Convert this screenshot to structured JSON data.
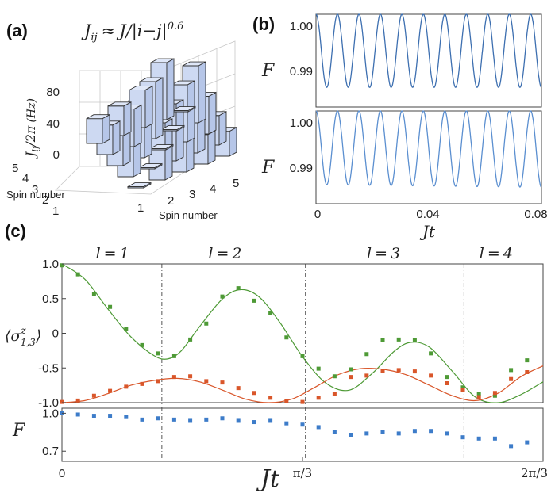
{
  "chart_data": [
    {
      "type": "bar3d",
      "panel": "(a)",
      "title": "J_ij ≈ J/|i−j|^0.6",
      "title_parts": {
        "lhs": "J",
        "lhs_sub": "ij",
        "rel": "≈",
        "rhs": "J/|i−j|",
        "rhs_sup": "0.6"
      },
      "zlabel": "J_ij/2π (Hz)",
      "zlabel_parts": {
        "main": "J",
        "sub": "ij",
        "rest": "/2π",
        "unit": "(Hz)"
      },
      "xlabel": "Spin number",
      "ylabel": "Spin number",
      "x_ticks": [
        "1",
        "2",
        "3",
        "4",
        "5"
      ],
      "y_ticks": [
        "1",
        "2",
        "3",
        "4",
        "5"
      ],
      "z_ticks": [
        "0",
        "40",
        "80"
      ],
      "zlim": [
        0,
        100
      ],
      "exponent": 0.6,
      "J_nearest_Hz": 72
    },
    {
      "type": "line",
      "panel": "(b)",
      "subplots": [
        {
          "ylabel": "F",
          "y_ticks": [
            "1.00",
            "0.99"
          ],
          "ylim": [
            0.983,
            1.0
          ],
          "series": [
            {
              "name": "F",
              "color": "#3d6fb0",
              "samples": 700,
              "x_range": [
                0,
                0.08
              ],
              "cycles": 10.5,
              "y_max": 1.0,
              "y_min_start": 0.9866,
              "y_min_end": 0.9866
            }
          ]
        },
        {
          "ylabel": "F",
          "y_ticks": [
            "1.00",
            "0.99"
          ],
          "ylim": [
            0.983,
            1.0
          ],
          "series": [
            {
              "name": "F",
              "color": "#5b8fd0",
              "samples": 700,
              "x_range": [
                0,
                0.08
              ],
              "cycles": 10.5,
              "y_max": 1.0,
              "y_min_start": 0.9865,
              "y_min_end": 0.986
            }
          ]
        }
      ],
      "xlabel": "Jt",
      "x_ticks": [
        "0",
        "0.04",
        "0.08"
      ],
      "x_tick_values": [
        0,
        0.04,
        0.08
      ],
      "xlim": [
        0,
        0.08
      ]
    },
    {
      "type": "scatter+line",
      "panel": "(c)",
      "xlabel": "Jt",
      "xlim": [
        0,
        2.0944
      ],
      "x_ticks": [
        "0",
        "π/3",
        "2π/3"
      ],
      "x_tick_values": [
        0,
        1.0472,
        2.0944
      ],
      "regions": [
        {
          "label": "l = 1",
          "l": "l",
          "n": "1",
          "center": 0.22
        },
        {
          "label": "l = 2",
          "l": "l",
          "n": "2",
          "center": 0.71
        },
        {
          "label": "l = 3",
          "l": "l",
          "n": "3",
          "center": 1.4
        },
        {
          "label": "l = 4",
          "l": "l",
          "n": "4",
          "center": 1.89
        }
      ],
      "region_boundaries": [
        0.435,
        1.06,
        1.75
      ],
      "top": {
        "ylabel": "⟨σ^z_{1,3}⟩",
        "ylabel_parts": {
          "sigma": "σ",
          "sup": "z",
          "sub": "1,3"
        },
        "ylim": [
          -1.0,
          1.0
        ],
        "y_ticks": [
          "1.0",
          "0.5",
          "0",
          "-0.5",
          "-1.0"
        ],
        "y_tick_values": [
          1.0,
          0.5,
          0.0,
          -0.5,
          -1.0
        ],
        "series": [
          {
            "name": "⟨σ^z_1⟩ experiment",
            "kind": "points",
            "color": "#4e9a36",
            "x": [
              0,
              0.0698,
              0.1396,
              0.2094,
              0.2793,
              0.3491,
              0.4189,
              0.4887,
              0.5585,
              0.6283,
              0.6981,
              0.7679,
              0.8378,
              0.9076,
              0.9774,
              1.0472,
              1.117,
              1.1868,
              1.2566,
              1.3265,
              1.3963,
              1.4661,
              1.5359,
              1.6057,
              1.6755,
              1.7453,
              1.8151,
              1.885,
              1.9548,
              2.0246
            ],
            "y": [
              0.98,
              0.85,
              0.56,
              0.38,
              0.06,
              -0.17,
              -0.29,
              -0.33,
              -0.09,
              0.14,
              0.53,
              0.65,
              0.47,
              0.29,
              -0.06,
              -0.33,
              -0.51,
              -0.62,
              -0.52,
              -0.3,
              -0.1,
              -0.09,
              -0.1,
              -0.29,
              -0.63,
              -0.78,
              -0.88,
              -0.9,
              -0.53,
              -0.39
            ]
          },
          {
            "name": "⟨σ^z_3⟩ experiment",
            "kind": "points",
            "color": "#d9562a",
            "x": [
              0,
              0.0698,
              0.1396,
              0.2094,
              0.2793,
              0.3491,
              0.4189,
              0.4887,
              0.5585,
              0.6283,
              0.6981,
              0.7679,
              0.8378,
              0.9076,
              0.9774,
              1.0472,
              1.117,
              1.1868,
              1.2566,
              1.3265,
              1.3963,
              1.4661,
              1.5359,
              1.6057,
              1.6755,
              1.7453,
              1.8151,
              1.885,
              1.9548,
              2.0246
            ],
            "y": [
              -0.99,
              -0.97,
              -0.9,
              -0.83,
              -0.77,
              -0.73,
              -0.69,
              -0.63,
              -0.62,
              -0.69,
              -0.71,
              -0.79,
              -0.86,
              -0.93,
              -0.98,
              -0.99,
              -0.93,
              -0.87,
              -0.63,
              -0.61,
              -0.54,
              -0.53,
              -0.55,
              -0.61,
              -0.72,
              -0.82,
              -0.92,
              -0.86,
              -0.66,
              -0.56
            ]
          },
          {
            "name": "⟨σ^z_1⟩ theory",
            "kind": "line",
            "color": "#4e9a36",
            "x": [
              0,
              0.1,
              0.2,
              0.3,
              0.4,
              0.46,
              0.52,
              0.6,
              0.7,
              0.78,
              0.86,
              0.95,
              1.05,
              1.15,
              1.25,
              1.35,
              1.45,
              1.52,
              1.6,
              1.7,
              1.8,
              1.9,
              2.0,
              2.0944
            ],
            "y": [
              1.0,
              0.78,
              0.35,
              -0.05,
              -0.32,
              -0.37,
              -0.25,
              0.1,
              0.5,
              0.63,
              0.52,
              0.15,
              -0.35,
              -0.72,
              -0.82,
              -0.58,
              -0.25,
              -0.13,
              -0.2,
              -0.55,
              -0.92,
              -1.0,
              -0.88,
              -0.7
            ]
          },
          {
            "name": "⟨σ^z_3⟩ theory",
            "kind": "line",
            "color": "#d9562a",
            "x": [
              0,
              0.1,
              0.2,
              0.3,
              0.4,
              0.5,
              0.6,
              0.7,
              0.8,
              0.9,
              1.0,
              1.1,
              1.2,
              1.3,
              1.4,
              1.5,
              1.6,
              1.7,
              1.8,
              1.9,
              2.0,
              2.0944
            ],
            "y": [
              -1.0,
              -0.97,
              -0.87,
              -0.75,
              -0.68,
              -0.65,
              -0.7,
              -0.82,
              -0.95,
              -1.0,
              -0.95,
              -0.78,
              -0.6,
              -0.51,
              -0.52,
              -0.6,
              -0.75,
              -0.9,
              -0.97,
              -0.86,
              -0.62,
              -0.47
            ]
          }
        ]
      },
      "bottom": {
        "ylabel": "F",
        "ylim": [
          0.62,
          1.04
        ],
        "y_ticks": [
          "1.0",
          "0.7"
        ],
        "y_tick_values": [
          1.0,
          0.7
        ],
        "series": [
          {
            "name": "F experiment",
            "kind": "points",
            "color": "#3d7cc9",
            "x": [
              0,
              0.0698,
              0.1396,
              0.2094,
              0.2793,
              0.3491,
              0.4189,
              0.4887,
              0.5585,
              0.6283,
              0.6981,
              0.7679,
              0.8378,
              0.9076,
              0.9774,
              1.0472,
              1.117,
              1.1868,
              1.2566,
              1.3265,
              1.3963,
              1.4661,
              1.5359,
              1.6057,
              1.6755,
              1.7453,
              1.8151,
              1.885,
              1.9548,
              2.0246
            ],
            "y": [
              1.0,
              0.99,
              0.98,
              0.98,
              0.97,
              0.95,
              0.96,
              0.95,
              0.94,
              0.95,
              0.96,
              0.94,
              0.93,
              0.94,
              0.92,
              0.91,
              0.89,
              0.85,
              0.83,
              0.84,
              0.85,
              0.84,
              0.86,
              0.86,
              0.84,
              0.81,
              0.8,
              0.8,
              0.74,
              0.77
            ]
          }
        ]
      }
    }
  ]
}
